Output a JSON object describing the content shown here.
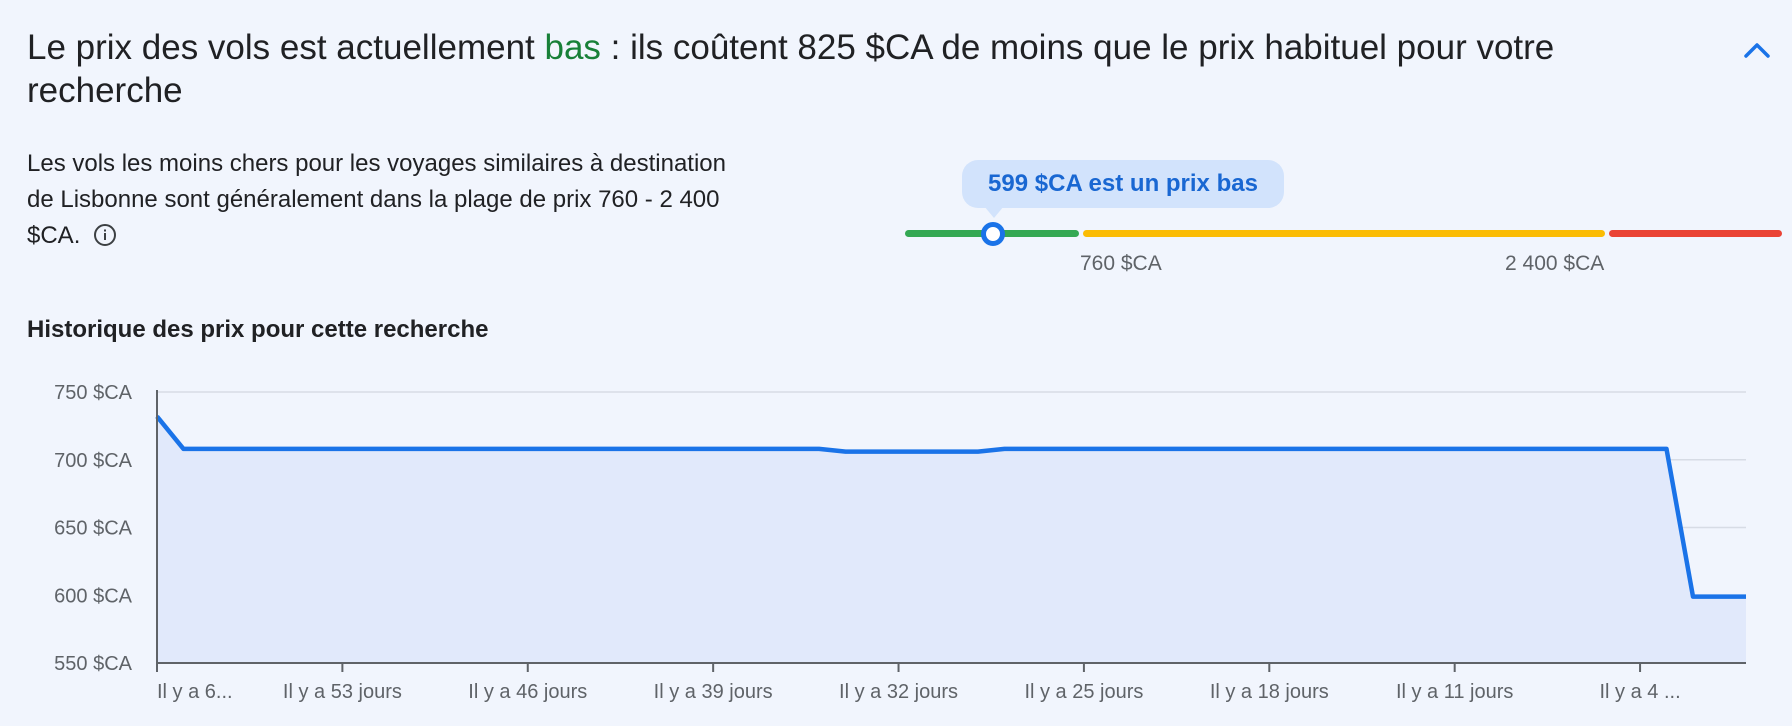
{
  "header": {
    "headline_prefix": "Le prix des vols est actuellement ",
    "headline_status": "bas",
    "headline_suffix": " : ils coûtent 825 $CA de moins que le prix habituel pour votre recherche",
    "collapse_icon": "chevron-up-icon"
  },
  "summary": {
    "description": "Les vols les moins chers pour les voyages similaires à destination de Lisbonne sont généralement dans la plage de prix 760 - 2 400 $CA.",
    "info_icon": "info-icon"
  },
  "price_range": {
    "tooltip": "599 $CA est un prix bas",
    "current_price": 599,
    "low_label": "760 $CA",
    "high_label": "2 400 $CA",
    "low_value": 760,
    "high_value": 2400,
    "colors": {
      "low": "#34a853",
      "typical": "#fbbc04",
      "high": "#ea4335",
      "marker": "#1a73e8"
    }
  },
  "history": {
    "title": "Historique des prix pour cette recherche"
  },
  "chart_data": {
    "type": "area",
    "title": "Historique des prix pour cette recherche",
    "xlabel": "",
    "ylabel": "",
    "y_ticks": [
      "750 $CA",
      "700 $CA",
      "650 $CA",
      "600 $CA",
      "550 $CA"
    ],
    "y_tick_values": [
      750,
      700,
      650,
      600,
      550
    ],
    "ylim": [
      550,
      750
    ],
    "x_tick_labels": [
      "Il y a 6...",
      "Il y a 53 jours",
      "Il y a 46 jours",
      "Il y a 39 jours",
      "Il y a 32 jours",
      "Il y a 25 jours",
      "Il y a 18 jours",
      "Il y a 11 jours",
      "Il y a 4 ..."
    ],
    "x_tick_days_ago": [
      60,
      53,
      46,
      39,
      32,
      25,
      18,
      11,
      4
    ],
    "xlim_days_ago": [
      60,
      0
    ],
    "grid": true,
    "line_color": "#1a73e8",
    "fill_color": "#e1e9fb",
    "series": [
      {
        "x_days_ago": [
          60,
          59,
          35,
          34,
          29,
          28,
          3,
          2,
          0
        ],
        "values": [
          732,
          708,
          708,
          706,
          706,
          708,
          708,
          599,
          599
        ]
      }
    ]
  }
}
